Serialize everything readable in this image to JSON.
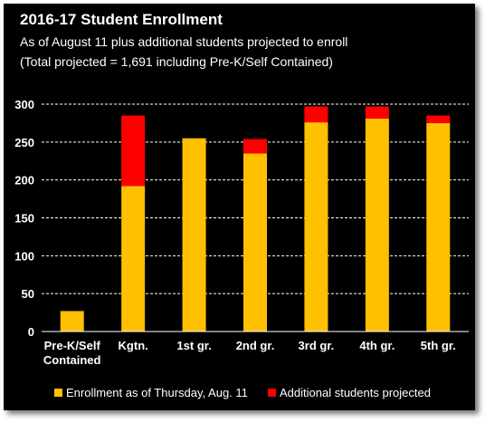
{
  "title": "2016-17 Student Enrollment",
  "subtitle_line1": "As of August 11 plus additional students projected to enroll",
  "subtitle_line2": "(Total projected = 1,691 including Pre-K/Self Contained)",
  "colors": {
    "enrollment": "#FFC000",
    "additional": "#FF0000",
    "background": "#000000",
    "grid": "#ffffff"
  },
  "chart_data": {
    "type": "bar",
    "stacked": true,
    "categories": [
      "Pre-K/Self Contained",
      "Kgtn.",
      "1st gr.",
      "2nd gr.",
      "3rd gr.",
      "4th gr.",
      "5th gr."
    ],
    "category_lines": [
      [
        "Pre-K/Self",
        "Contained"
      ],
      [
        "Kgtn."
      ],
      [
        "1st gr."
      ],
      [
        "2nd gr."
      ],
      [
        "3rd gr."
      ],
      [
        "4th gr."
      ],
      [
        "5th gr."
      ]
    ],
    "series": [
      {
        "name": "Enrollment as of Thursday, Aug. 11",
        "values": [
          27,
          192,
          255,
          235,
          276,
          281,
          275
        ]
      },
      {
        "name": "Additional students projected",
        "values": [
          0,
          93,
          0,
          19,
          21,
          16,
          10
        ]
      }
    ],
    "ylim": [
      0,
      300
    ],
    "yticks": [
      0,
      50,
      100,
      150,
      200,
      250,
      300
    ],
    "grid": true,
    "legend_position": "bottom"
  }
}
